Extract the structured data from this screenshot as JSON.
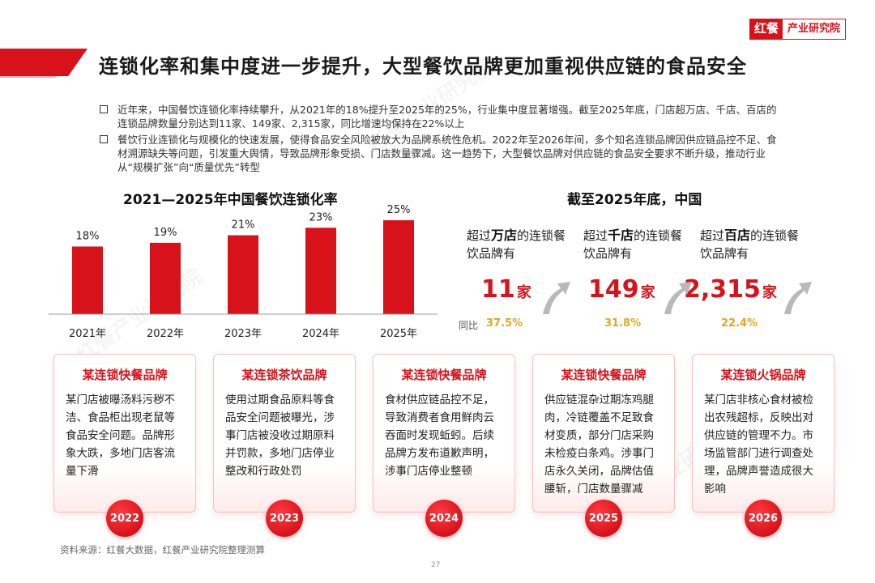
{
  "logo": {
    "mark": "红餐",
    "text": "产业研究院"
  },
  "title": "连锁化率和集中度进一步提升，大型餐饮品牌更加重视供应链的食品安全",
  "bullets": [
    "近年来，中国餐饮连锁化率持续攀升，从2021年的18%提升至2025年的25%，行业集中度显著增强。截至2025年底，门店超万店、千店、百店的连锁品牌数量分别达到11家、149家、2,315家，同比增速均保持在22%以上",
    "餐饮行业连锁化与规模化的快速发展，使得食品安全风险被放大为品牌系统性危机。2022年至2026年间，多个知名连锁品牌因供应链品控不足、食材溯源缺失等问题，引发重大舆情，导致品牌形象受损、门店数量骤减。这一趋势下，大型餐饮品牌对供应链的食品安全要求不断升级，推动行业从“规模扩张”向“质量优先”转型"
  ],
  "chart_data": {
    "type": "bar",
    "title": "2021—2025年中国餐饮连锁化率",
    "categories": [
      "2021年",
      "2022年",
      "2023年",
      "2024年",
      "2025年"
    ],
    "values": [
      18,
      19,
      21,
      23,
      25
    ],
    "value_labels": [
      "18%",
      "19%",
      "21%",
      "23%",
      "25%"
    ],
    "unit": "%",
    "ylim": [
      0,
      25
    ],
    "grid": false,
    "color": "#d8121b"
  },
  "stats": {
    "heading": "截至2025年底，中国",
    "yoy_label": "同比",
    "items": [
      {
        "prefix": "超过",
        "highlight": "万店",
        "suffix": "的连锁餐饮品牌有",
        "number": "11",
        "unit": "家",
        "growth": "37.5%"
      },
      {
        "prefix": "超过",
        "highlight": "千店",
        "suffix": "的连锁餐饮品牌有",
        "number": "149",
        "unit": "家",
        "growth": "31.8%"
      },
      {
        "prefix": "超过",
        "highlight": "百店",
        "suffix": "的连锁餐饮品牌有",
        "number": "2,315",
        "unit": "家",
        "growth": "22.4%"
      }
    ]
  },
  "cases": [
    {
      "title": "某连锁快餐品牌",
      "body": "某门店被曝汤料污秽不洁、食品柜出现老鼠等食品安全问题。品牌形象大跌，多地门店客流量下滑",
      "year": "2022"
    },
    {
      "title": "某连锁茶饮品牌",
      "body": "使用过期食品原料等食品安全问题被曝光，涉事门店被没收过期原料并罚款，多地门店停业整改和行政处罚",
      "year": "2023"
    },
    {
      "title": "某连锁快餐品牌",
      "body": "食材供应链品控不足，导致消费者食用鲜肉云吞面时发现蚯蚓。后续品牌方发布道歉声明，涉事门店停业整顿",
      "year": "2024"
    },
    {
      "title": "某连锁快餐品牌",
      "body": "供应链混杂过期冻鸡腿肉，冷链覆盖不足致食材变质，部分门店采购未检疫白条鸡。涉事门店永久关闭，品牌估值腰斩，门店数量骤减",
      "year": "2025"
    },
    {
      "title": "某连锁火锅品牌",
      "body": "某门店非核心食材被检出农残超标，反映出对供应链的管理不力。市场监管部门进行调查处理，品牌声誉造成很大影响",
      "year": "2026"
    }
  ],
  "source": "资料来源：红餐大数据，红餐产业研究院整理测算",
  "page_number": "27",
  "watermark": "红餐产业研究院"
}
